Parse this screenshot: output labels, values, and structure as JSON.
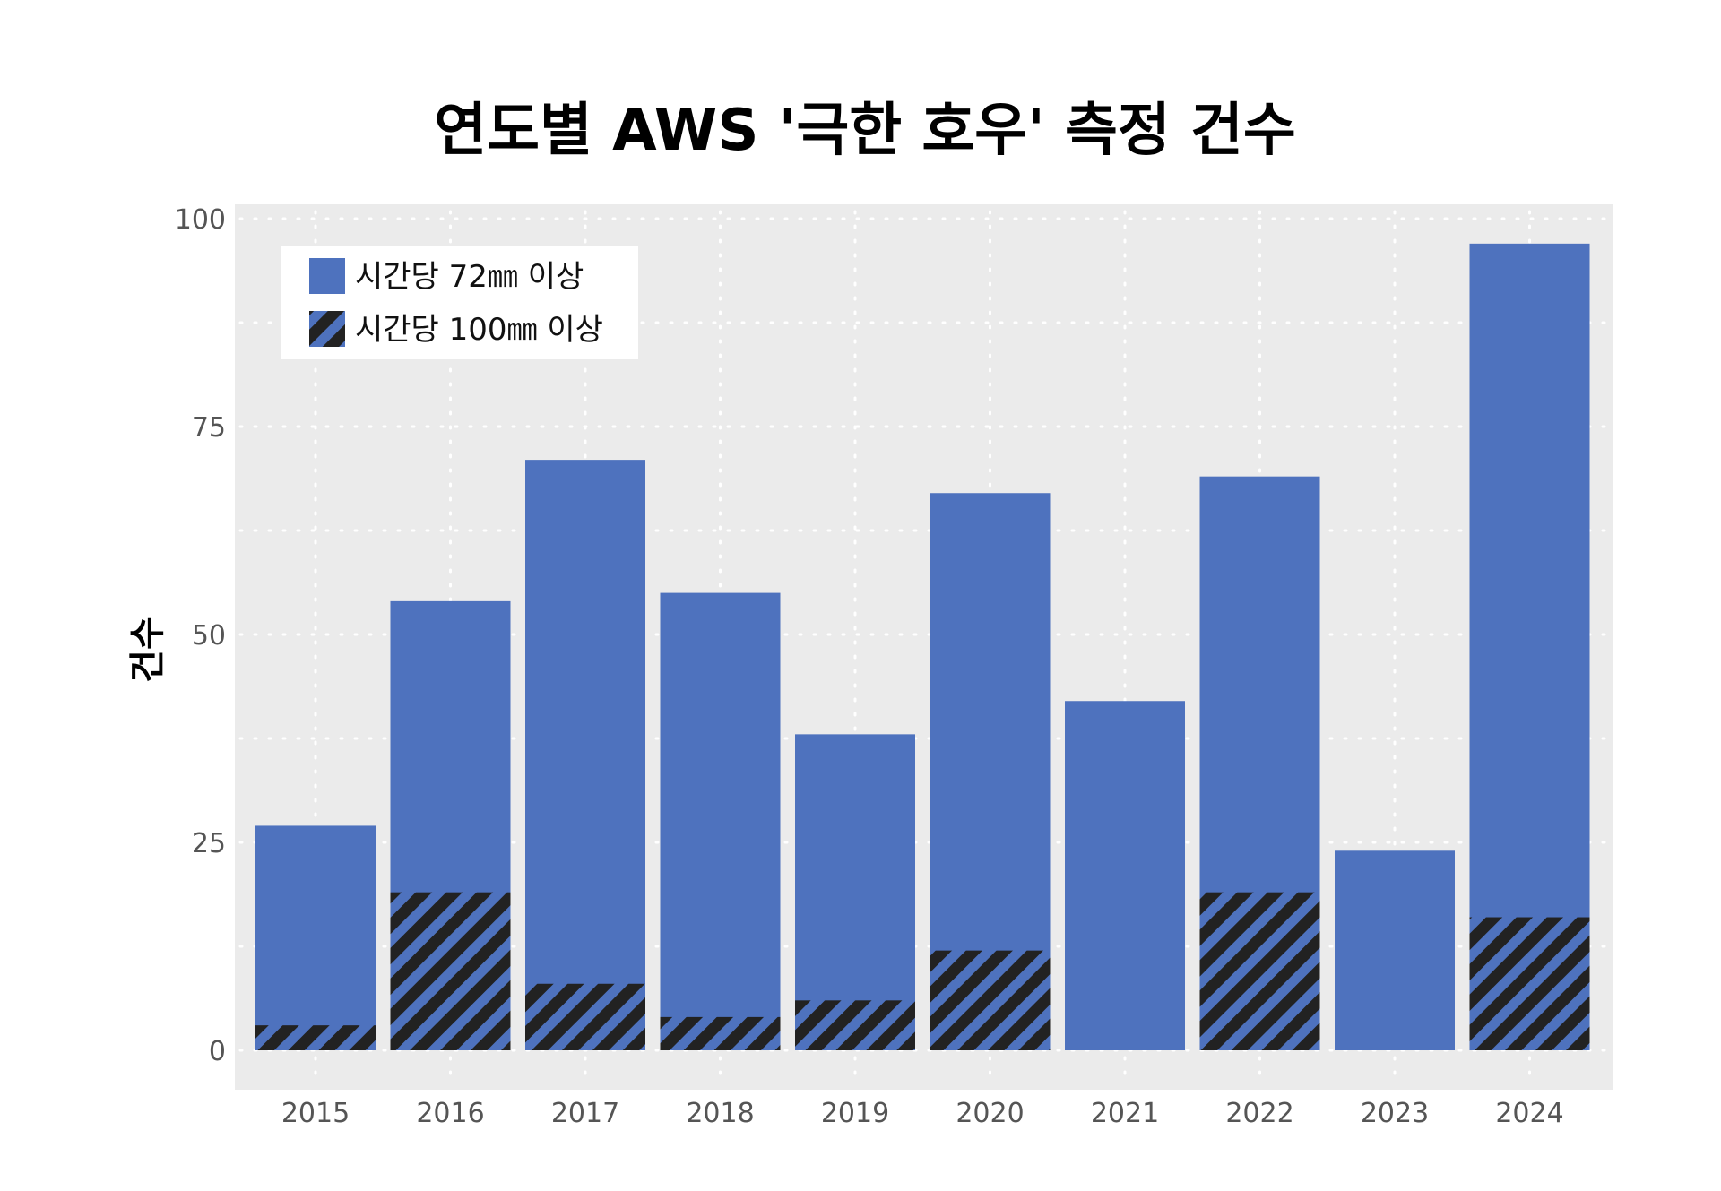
{
  "chart_data": {
    "type": "bar",
    "title": "연도별 AWS '극한 호우' 측정 건수",
    "xlabel": "",
    "ylabel": "건수",
    "categories": [
      "2015",
      "2016",
      "2017",
      "2018",
      "2019",
      "2020",
      "2021",
      "2022",
      "2023",
      "2024"
    ],
    "series": [
      {
        "name": "시간당 72㎜ 이상",
        "values": [
          27,
          54,
          71,
          55,
          38,
          67,
          42,
          69,
          24,
          97
        ],
        "color": "#4e72be",
        "pattern": "solid"
      },
      {
        "name": "시간당 100㎜ 이상",
        "values": [
          3,
          19,
          8,
          4,
          6,
          12,
          0,
          19,
          0,
          16
        ],
        "color": "#4e72be",
        "pattern": "diagonal-hatch-black"
      }
    ],
    "ylim": [
      0,
      100
    ],
    "yticks": [
      "0",
      "25",
      "50",
      "75",
      "100"
    ],
    "grid": true,
    "legend_position": "top-left",
    "background_color": "#ebebeb",
    "hatch_color": "#222222"
  }
}
